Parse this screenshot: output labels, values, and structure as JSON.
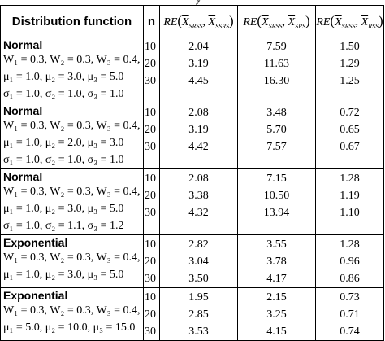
{
  "caption_fragment": "y",
  "table": {
    "headers": {
      "distribution": "Distribution function",
      "n": "n",
      "re_label": "RE",
      "col3": {
        "a": "X",
        "a_sub": "SRSS",
        "b": "X",
        "b_sub": "SSRS"
      },
      "col4": {
        "a": "X",
        "a_sub": "SRSS",
        "b": "X",
        "b_sub": "SRS"
      },
      "col5": {
        "a": "X",
        "a_sub": "SRSS",
        "b": "X",
        "b_sub": "RSS"
      }
    },
    "groups": [
      {
        "name": "Normal",
        "params": [
          "W₁ = 0.3, W₂ = 0.3, W₃ = 0.4,",
          "μ₁ = 1.0, μ₂ = 3.0, μ₃ = 5.0",
          "σ₁ = 1.0, σ₂ = 1.0, σ₃ = 1.0"
        ],
        "n": [
          "10",
          "20",
          "30"
        ],
        "re_ssrs": [
          "2.04",
          "3.19",
          "4.45"
        ],
        "re_srs": [
          "7.59",
          "11.63",
          "16.30"
        ],
        "re_rss": [
          "1.50",
          "1.29",
          "1.25"
        ]
      },
      {
        "name": "Normal",
        "params": [
          "W₁ = 0.3, W₂ = 0.3, W₃ = 0.4,",
          "μ₁ = 1.0, μ₂ = 2.0, μ₃ = 3.0",
          "σ₁ = 1.0, σ₂ = 1.0, σ₃ = 1.0"
        ],
        "n": [
          "10",
          "20",
          "30"
        ],
        "re_ssrs": [
          "2.08",
          "3.19",
          "4.42"
        ],
        "re_srs": [
          "3.48",
          "5.70",
          "7.57"
        ],
        "re_rss": [
          "0.72",
          "0.65",
          "0.67"
        ]
      },
      {
        "name": "Normal",
        "params": [
          "W₁ = 0.3, W₂ = 0.3, W₃ = 0.4,",
          "μ₁ = 1.0, μ₂ = 3.0, μ₃ = 5.0",
          "σ₁ = 1.0, σ₂ = 1.1, σ₃ = 1.2"
        ],
        "n": [
          "10",
          "20",
          "30"
        ],
        "re_ssrs": [
          "2.08",
          "3.38",
          "4.32"
        ],
        "re_srs": [
          "7.15",
          "10.50",
          "13.94"
        ],
        "re_rss": [
          "1.28",
          "1.19",
          "1.10"
        ]
      },
      {
        "name": "Exponential",
        "params": [
          "W₁ = 0.3, W₂ = 0.3, W₃ = 0.4,",
          "μ₁ = 1.0, μ₂ = 3.0, μ₃ = 5.0"
        ],
        "n": [
          "10",
          "20",
          "30"
        ],
        "re_ssrs": [
          "2.82",
          "3.04",
          "3.50"
        ],
        "re_srs": [
          "3.55",
          "3.78",
          "4.17"
        ],
        "re_rss": [
          "1.28",
          "0.96",
          "0.86"
        ]
      },
      {
        "name": "Exponential",
        "params": [
          "W₁ = 0.3, W₂ = 0.3, W₃ = 0.4,",
          "μ₁ = 5.0, μ₂ = 10.0, μ₃ = 15.0"
        ],
        "n": [
          "10",
          "20",
          "30"
        ],
        "re_ssrs": [
          "1.95",
          "2.85",
          "3.53"
        ],
        "re_srs": [
          "2.15",
          "3.25",
          "4.15"
        ],
        "re_rss": [
          "0.73",
          "0.71",
          "0.74"
        ]
      }
    ]
  }
}
